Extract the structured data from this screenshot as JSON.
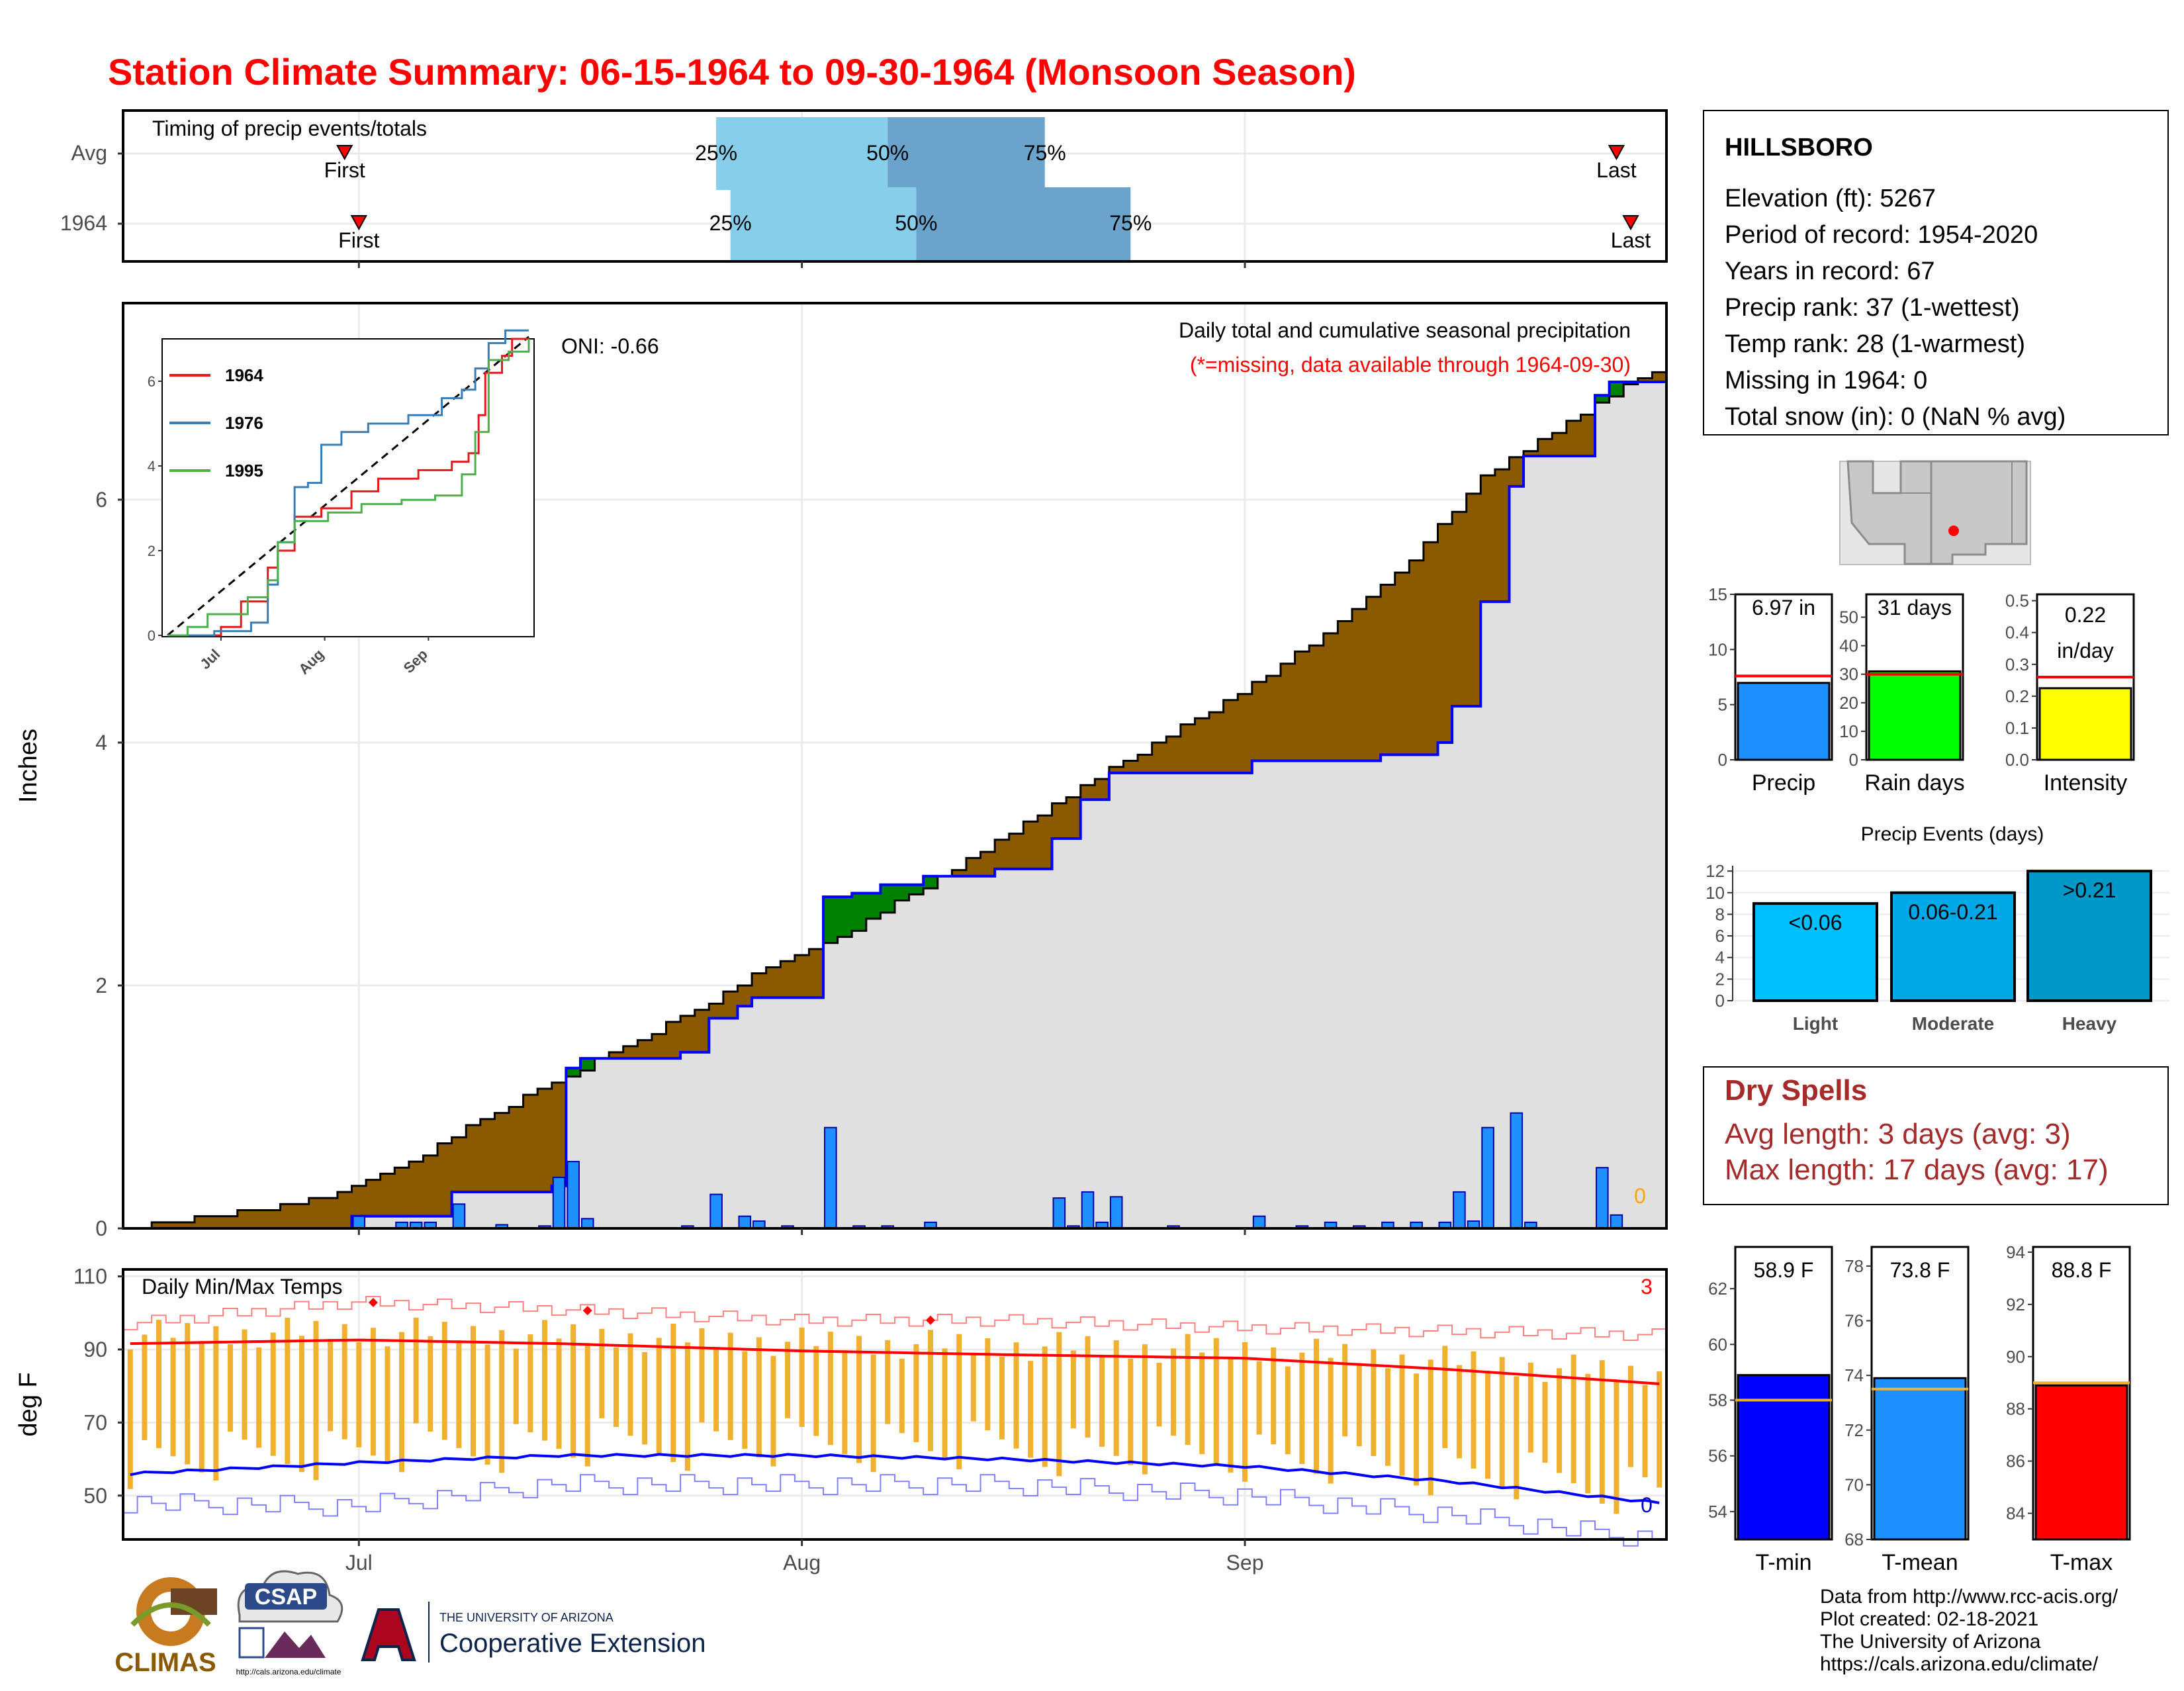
{
  "title": "Station Climate Summary: 06-15-1964 to 09-30-1964 (Monsoon Season)",
  "colors": {
    "title": "#ff0000",
    "accent_red": "#ff0000",
    "precip_blue": "#1e90ff",
    "cum_fill": "#e0e0e0",
    "deficit_brown": "#8b5a00",
    "surplus_green": "#008000",
    "temp_bar": "#f0b030",
    "tmin_bar": "#0000ff",
    "tmean_bar": "#1e90ff",
    "tmax_bar": "#ff0000",
    "rain_days_bar": "#00ff00",
    "intensity_bar": "#ffff00",
    "q_light": "#87ceeb",
    "q_dark": "#6aa4cc",
    "dry_spells": "#a52a2a"
  },
  "timing_panel": {
    "title": "Timing of precip events/totals",
    "rows": [
      {
        "label": "Avg",
        "first_date": "1964-06-30",
        "last_date": "1964-09-27",
        "q25_date": "1964-07-26",
        "q50_date": "1964-08-07",
        "q75_date": "1964-08-18",
        "first_label": "First",
        "last_label": "Last",
        "q25_label": "25%",
        "q50_label": "50%",
        "q75_label": "75%"
      },
      {
        "label": "1964",
        "first_date": "1964-07-01",
        "last_date": "1964-09-28",
        "q25_date": "1964-07-27",
        "q50_date": "1964-08-09",
        "q75_date": "1964-08-24",
        "first_label": "First",
        "last_label": "Last",
        "q25_label": "25%",
        "q50_label": "50%",
        "q75_label": "75%"
      }
    ]
  },
  "station_box": {
    "name": "HILLSBORO",
    "lines": [
      "Elevation (ft): 5267",
      "Period of record: 1954-2020",
      "Years in record: 67",
      "Precip rank: 37 (1-wettest)",
      "Temp rank: 28 (1-warmest)",
      "Missing in 1964: 0",
      "Total snow (in): 0 (NaN % avg)"
    ]
  },
  "main_panel": {
    "ylabel": "Inches",
    "annotation_title": "Daily total and cumulative seasonal precipitation",
    "annotation_sub": "(*=missing, data available through 1964-09-30)",
    "oni": "ONI: -0.66",
    "missing_count": "0"
  },
  "inset": {
    "y_ticks": [
      "0",
      "2",
      "4",
      "6"
    ],
    "x_ticks": [
      "Jul",
      "Aug",
      "Sep"
    ],
    "legend": [
      "1964",
      "1976",
      "1995"
    ],
    "series_colors": [
      "#e41a1c",
      "#377eb8",
      "#4daf4a"
    ]
  },
  "temp_panel": {
    "ylabel": "deg F",
    "title": "Daily Min/Max Temps",
    "count_high": "3",
    "count_low": "0",
    "y_ticks": [
      "50",
      "70",
      "90",
      "110"
    ]
  },
  "x_axis": {
    "ticks": [
      "Jul",
      "Aug",
      "Sep"
    ]
  },
  "mini_bars": [
    {
      "label": "Precip",
      "value_text": "6.97 in",
      "value": 6.97,
      "avg": 7.6,
      "ymax": 15,
      "ticks": [
        "0",
        "5",
        "10",
        "15"
      ]
    },
    {
      "label": "Rain days",
      "value_text": "31 days",
      "value": 31,
      "avg": 30,
      "ymax": 58,
      "ticks": [
        "0",
        "10",
        "20",
        "30",
        "40",
        "50"
      ]
    },
    {
      "label": "Intensity",
      "value_text": "0.22",
      "value_text2": "in/day",
      "value": 0.225,
      "avg": 0.26,
      "ymax": 0.52,
      "ticks": [
        "0.0",
        "0.1",
        "0.2",
        "0.3",
        "0.4",
        "0.5"
      ]
    }
  ],
  "events_panel": {
    "title": "Precip Events (days)",
    "ticks": [
      "0",
      "2",
      "4",
      "6",
      "8",
      "10",
      "12"
    ],
    "bars": [
      {
        "label": "Light",
        "value": 9,
        "value_text": "<0.06"
      },
      {
        "label": "Moderate",
        "value": 10,
        "value_text": "0.06-0.21"
      },
      {
        "label": "Heavy",
        "value": 12,
        "value_text": ">0.21"
      }
    ]
  },
  "dry_spells": {
    "title": "Dry Spells",
    "avg_line": "Avg length: 3 days (avg: 3)",
    "max_line": "Max length: 17 days (avg: 17)"
  },
  "temp_bars": [
    {
      "label": "T-min",
      "value_text": "58.9 F",
      "value": 58.9,
      "avg": 58.0,
      "ymin": 53,
      "ymax": 63.5,
      "ticks": [
        "54",
        "56",
        "58",
        "60",
        "62"
      ]
    },
    {
      "label": "T-mean",
      "value_text": "73.8 F",
      "value": 73.9,
      "avg": 73.5,
      "ymin": 68,
      "ymax": 78.7,
      "ticks": [
        "68",
        "70",
        "72",
        "74",
        "76",
        "78"
      ]
    },
    {
      "label": "T-max",
      "value_text": "88.8 F",
      "value": 88.9,
      "avg": 89.0,
      "ymin": 83,
      "ymax": 94.2,
      "ticks": [
        "84",
        "86",
        "88",
        "90",
        "92",
        "94"
      ]
    }
  ],
  "footer": {
    "lines": [
      "Data from http://www.rcc-acis.org/",
      "Plot created: 02-18-2021",
      "The University of Arizona",
      "https://cals.arizona.edu/climate/"
    ],
    "logo_climas": "CLIMAS",
    "logo_csap": "CSAP",
    "logo_csap_url": "http://cals.arizona.edu/climate",
    "ua_small": "THE UNIVERSITY OF ARIZONA",
    "ua_big": "Cooperative Extension"
  },
  "chart_data": {
    "type": "bar",
    "title": "Daily total and cumulative seasonal precipitation",
    "ylabel": "Inches",
    "x_range": [
      "1964-06-15",
      "1964-09-30"
    ],
    "ylim": [
      0,
      7.6
    ],
    "y_ticks": [
      0,
      2,
      4,
      6
    ],
    "series": [
      {
        "name": "1964",
        "type": "bar",
        "points": [
          [
            "1964-07-01",
            0.1
          ],
          [
            "1964-07-04",
            0.05
          ],
          [
            "1964-07-05",
            0.05
          ],
          [
            "1964-07-06",
            0.05
          ],
          [
            "1964-07-08",
            0.2
          ],
          [
            "1964-07-11",
            0.03
          ],
          [
            "1964-07-14",
            0.02
          ],
          [
            "1964-07-15",
            0.42
          ],
          [
            "1964-07-16",
            0.55
          ],
          [
            "1964-07-17",
            0.08
          ],
          [
            "1964-07-24",
            0.02
          ],
          [
            "1964-07-26",
            0.28
          ],
          [
            "1964-07-28",
            0.1
          ],
          [
            "1964-07-29",
            0.06
          ],
          [
            "1964-07-31",
            0.02
          ],
          [
            "1964-08-03",
            0.83
          ],
          [
            "1964-08-05",
            0.02
          ],
          [
            "1964-08-07",
            0.02
          ],
          [
            "1964-08-10",
            0.05
          ],
          [
            "1964-08-19",
            0.25
          ],
          [
            "1964-08-20",
            0.02
          ],
          [
            "1964-08-21",
            0.3
          ],
          [
            "1964-08-22",
            0.05
          ],
          [
            "1964-08-23",
            0.26
          ],
          [
            "1964-08-27",
            0.02
          ],
          [
            "1964-09-02",
            0.1
          ],
          [
            "1964-09-05",
            0.02
          ],
          [
            "1964-09-07",
            0.05
          ],
          [
            "1964-09-09",
            0.02
          ],
          [
            "1964-09-11",
            0.05
          ],
          [
            "1964-09-13",
            0.05
          ],
          [
            "1964-09-15",
            0.05
          ],
          [
            "1964-09-16",
            0.3
          ],
          [
            "1964-09-17",
            0.06
          ],
          [
            "1964-09-18",
            0.83
          ],
          [
            "1964-09-20",
            0.95
          ],
          [
            "1964-09-21",
            0.05
          ],
          [
            "1964-09-26",
            0.5
          ],
          [
            "1964-09-27",
            0.11
          ]
        ]
      },
      {
        "name": "1964 cumulative",
        "type": "step",
        "points": [
          [
            "1964-06-15",
            0
          ],
          [
            "1964-07-01",
            0.1
          ],
          [
            "1964-07-08",
            0.3
          ],
          [
            "1964-07-15",
            0.35
          ],
          [
            "1964-07-16",
            1.32
          ],
          [
            "1964-07-17",
            1.4
          ],
          [
            "1964-07-24",
            1.45
          ],
          [
            "1964-07-26",
            1.73
          ],
          [
            "1964-07-28",
            1.83
          ],
          [
            "1964-07-29",
            1.9
          ],
          [
            "1964-08-03",
            2.73
          ],
          [
            "1964-08-05",
            2.76
          ],
          [
            "1964-08-07",
            2.83
          ],
          [
            "1964-08-10",
            2.9
          ],
          [
            "1964-08-15",
            2.96
          ],
          [
            "1964-08-19",
            3.21
          ],
          [
            "1964-08-21",
            3.53
          ],
          [
            "1964-08-23",
            3.75
          ],
          [
            "1964-09-02",
            3.85
          ],
          [
            "1964-09-11",
            3.9
          ],
          [
            "1964-09-15",
            4.0
          ],
          [
            "1964-09-16",
            4.3
          ],
          [
            "1964-09-18",
            5.16
          ],
          [
            "1964-09-20",
            6.11
          ],
          [
            "1964-09-21",
            6.36
          ],
          [
            "1964-09-26",
            6.86
          ],
          [
            "1964-09-27",
            6.97
          ],
          [
            "1964-09-30",
            6.97
          ]
        ]
      },
      {
        "name": "Avg cumulative",
        "type": "step",
        "points": [
          [
            "1964-06-15",
            0
          ],
          [
            "1964-06-20",
            0.08
          ],
          [
            "1964-06-25",
            0.17
          ],
          [
            "1964-06-30",
            0.3
          ],
          [
            "1964-07-05",
            0.55
          ],
          [
            "1964-07-10",
            0.9
          ],
          [
            "1964-07-15",
            1.2
          ],
          [
            "1964-07-20",
            1.5
          ],
          [
            "1964-07-25",
            1.8
          ],
          [
            "1964-07-30",
            2.15
          ],
          [
            "1964-08-04",
            2.4
          ],
          [
            "1964-08-09",
            2.75
          ],
          [
            "1964-08-14",
            3.1
          ],
          [
            "1964-08-19",
            3.5
          ],
          [
            "1964-08-24",
            3.85
          ],
          [
            "1964-08-29",
            4.2
          ],
          [
            "1964-09-03",
            4.55
          ],
          [
            "1964-09-08",
            5.0
          ],
          [
            "1964-09-13",
            5.5
          ],
          [
            "1964-09-18",
            6.2
          ],
          [
            "1964-09-23",
            6.55
          ],
          [
            "1964-09-28",
            6.95
          ],
          [
            "1964-09-30",
            7.05
          ]
        ]
      }
    ],
    "temperature": {
      "ylabel": "deg F",
      "ylim": [
        38,
        112
      ],
      "avg_max": [
        [
          "1964-06-15",
          92
        ],
        [
          "1964-07-01",
          93
        ],
        [
          "1964-07-15",
          92
        ],
        [
          "1964-08-01",
          90
        ],
        [
          "1964-08-15",
          89
        ],
        [
          "1964-09-01",
          88
        ],
        [
          "1964-09-15",
          85
        ],
        [
          "1964-09-30",
          81
        ]
      ],
      "avg_min": [
        [
          "1964-06-15",
          56
        ],
        [
          "1964-07-01",
          59
        ],
        [
          "1964-07-15",
          61
        ],
        [
          "1964-08-01",
          61
        ],
        [
          "1964-08-15",
          60
        ],
        [
          "1964-09-01",
          58
        ],
        [
          "1964-09-15",
          54
        ],
        [
          "1964-09-30",
          48
        ]
      ],
      "record_high": [
        [
          "1964-06-15",
          97
        ],
        [
          "1964-07-01",
          103
        ],
        [
          "1964-07-15",
          101
        ],
        [
          "1964-08-01",
          98
        ],
        [
          "1964-08-15",
          98
        ],
        [
          "1964-09-01",
          96
        ],
        [
          "1964-09-15",
          95
        ],
        [
          "1964-09-30",
          94
        ]
      ],
      "record_low": [
        [
          "1964-06-15",
          48
        ],
        [
          "1964-07-01",
          47
        ],
        [
          "1964-07-15",
          53
        ],
        [
          "1964-08-01",
          53
        ],
        [
          "1964-08-15",
          53
        ],
        [
          "1964-09-01",
          50
        ],
        [
          "1964-09-15",
          45
        ],
        [
          "1964-09-30",
          38
        ]
      ]
    }
  }
}
